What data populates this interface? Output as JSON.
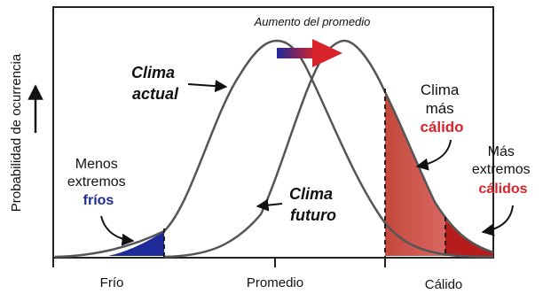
{
  "y_axis_label": "Probabilidad de ocurrencia",
  "x_axis": {
    "ticks": [
      "Frío",
      "Promedio",
      "Cálido"
    ]
  },
  "annotations": {
    "mean_shift": "Aumento del promedio",
    "current_climate": [
      "Clima",
      "actual"
    ],
    "future_climate": [
      "Clima",
      "futuro"
    ],
    "warmer_climate": [
      "Clima",
      "más",
      "cálido"
    ],
    "fewer_cold_extremes": [
      "Menos",
      "extremos",
      "fríos"
    ],
    "more_hot_extremes": [
      "Más",
      "extremos",
      "cálidos"
    ]
  },
  "colors": {
    "cold": "#1f2a99",
    "warm": "#d8232a",
    "warm_fill": "#d9534f",
    "curve": "#555555"
  }
}
